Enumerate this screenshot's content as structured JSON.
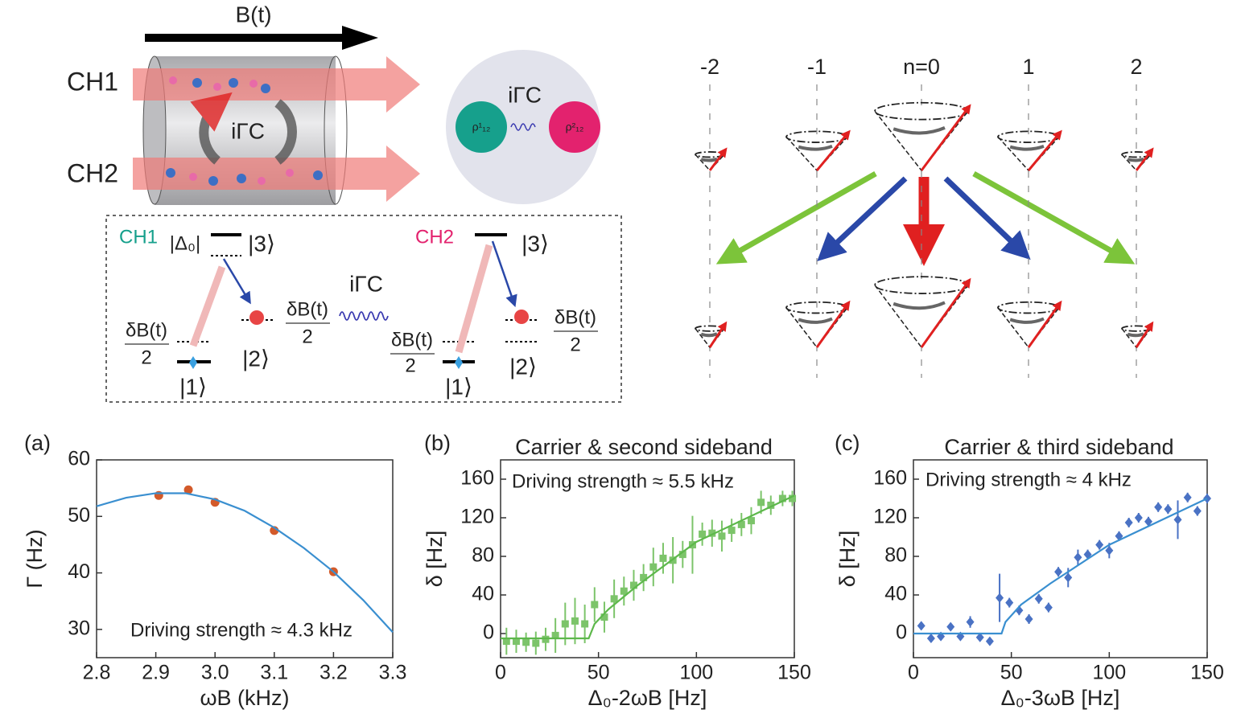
{
  "diagram": {
    "field": "B(t)",
    "channels": [
      "CH1",
      "CH2"
    ],
    "cell_coupling": "iΓC",
    "bubble_coupling": "iΓC",
    "rho": [
      "ρ¹₁₂",
      "ρ²₁₂"
    ],
    "level_coupling": "iΓC",
    "levels": [
      {
        "channel": "CH1",
        "detuning": "|Δ₀|",
        "state3": "|3⟩",
        "state2": "|2⟩",
        "state1": "|1⟩",
        "shifts": [
          {
            "num": "δB(t)",
            "den": "2"
          },
          {
            "num": "δB(t)",
            "den": "2"
          }
        ]
      },
      {
        "channel": "CH2",
        "state3": "|3⟩",
        "state2": "|2⟩",
        "state1": "|1⟩",
        "shifts": [
          {
            "num": "δB(t)",
            "den": "2"
          },
          {
            "num": "δB(t)",
            "den": "2"
          }
        ]
      }
    ],
    "sidebands": [
      "-2",
      "-1",
      "n=0",
      "1",
      "2"
    ]
  },
  "chart_data": [
    {
      "type": "scatter",
      "panel": "(a)",
      "annotation": "Driving strength ≈ 4.3 kHz",
      "x_label": "ωB (kHz)",
      "y_label": "Γ (Hz)",
      "xlim": [
        2.8,
        3.3
      ],
      "xticks": [
        2.8,
        2.9,
        {
          "value": 3,
          "label": "3.0"
        },
        3.1,
        3.2,
        3.3
      ],
      "ylim": [
        25,
        60
      ],
      "yticks": [
        30,
        40,
        50,
        60
      ],
      "series": [
        {
          "mode": "markers",
          "marker": "circle",
          "color": "#d35a2a",
          "x": [
            2.905,
            2.955,
            3.0,
            3.1,
            3.2
          ],
          "values": [
            53.7,
            54.7,
            52.5,
            47.5,
            40.2
          ]
        },
        {
          "mode": "line",
          "color": "#3a8fd0",
          "x": [
            2.8,
            2.85,
            2.9,
            2.95,
            3.0,
            3.05,
            3.1,
            3.15,
            3.2,
            3.25,
            3.3
          ],
          "values": [
            51.8,
            53.3,
            54.1,
            54.1,
            53.0,
            51.0,
            48.0,
            44.4,
            40.2,
            35.2,
            29.5
          ]
        }
      ]
    },
    {
      "type": "scatter",
      "panel": "(b)",
      "title": "Carrier & second sideband",
      "annotation": "Driving strength ≈ 5.5 kHz",
      "x_label": "Δ₀-2ωB [Hz]",
      "y_label": "δ [Hz]",
      "xlim": [
        0,
        150
      ],
      "xticks": [
        0,
        50,
        100,
        150
      ],
      "ylim": [
        -25,
        180
      ],
      "yticks": [
        0,
        40,
        80,
        120,
        160
      ],
      "series": [
        {
          "mode": "markers",
          "marker": "square",
          "color": "#7cc46a",
          "x": [
            3,
            8,
            13,
            18,
            23,
            28,
            33,
            38,
            43,
            48,
            53,
            58,
            63,
            68,
            73,
            78,
            83,
            88,
            93,
            98,
            103,
            108,
            113,
            118,
            123,
            128,
            133,
            138,
            144,
            149
          ],
          "values": [
            -8,
            -8,
            -9,
            -10,
            -6,
            -2,
            10,
            13,
            10,
            30,
            17,
            36,
            44,
            50,
            58,
            69,
            78,
            76,
            82,
            92,
            103,
            104,
            101,
            107,
            113,
            117,
            136,
            133,
            140,
            140
          ],
          "errors": [
            14,
            12,
            10,
            12,
            12,
            18,
            22,
            24,
            20,
            18,
            16,
            20,
            15,
            16,
            14,
            20,
            16,
            24,
            14,
            30,
            12,
            14,
            16,
            12,
            12,
            14,
            12,
            10,
            8,
            8
          ]
        },
        {
          "mode": "line",
          "color": "#5db84b",
          "x": [
            0,
            45,
            48,
            55,
            70,
            100,
            150
          ],
          "values": [
            -5,
            -5,
            10,
            25,
            50,
            95,
            143
          ]
        }
      ]
    },
    {
      "type": "scatter",
      "panel": "(c)",
      "title": "Carrier & third sideband",
      "annotation": "Driving strength ≈ 4 kHz",
      "x_label": "Δ₀-3ωB [Hz]",
      "y_label": "δ [Hz]",
      "xlim": [
        0,
        150
      ],
      "xticks": [
        0,
        50,
        100,
        150
      ],
      "ylim": [
        -25,
        180
      ],
      "yticks": [
        0,
        40,
        80,
        120,
        160
      ],
      "series": [
        {
          "mode": "markers",
          "marker": "diamond",
          "color": "#4a72c4",
          "x": [
            4,
            9,
            14,
            19,
            24,
            29,
            34,
            39,
            44,
            49,
            54,
            59,
            64,
            69,
            74,
            79,
            84,
            89,
            95,
            100,
            105,
            110,
            115,
            120,
            125,
            130,
            135,
            140,
            145,
            150
          ],
          "values": [
            8,
            -5,
            -3,
            7,
            -3,
            12,
            -4,
            -8,
            37,
            32,
            24,
            15,
            36,
            27,
            64,
            58,
            79,
            82,
            92,
            86,
            101,
            115,
            120,
            116,
            131,
            129,
            118,
            141,
            127,
            140
          ],
          "errors": [
            4,
            4,
            4,
            4,
            4,
            6,
            4,
            4,
            25,
            5,
            5,
            5,
            5,
            5,
            5,
            10,
            8,
            5,
            5,
            8,
            5,
            5,
            5,
            5,
            5,
            5,
            20,
            5,
            5,
            5
          ]
        },
        {
          "mode": "line",
          "color": "#3a8fd0",
          "x": [
            0,
            45,
            47,
            55,
            70,
            100,
            150
          ],
          "values": [
            0,
            0,
            12,
            30,
            52,
            92,
            140
          ]
        }
      ]
    }
  ]
}
